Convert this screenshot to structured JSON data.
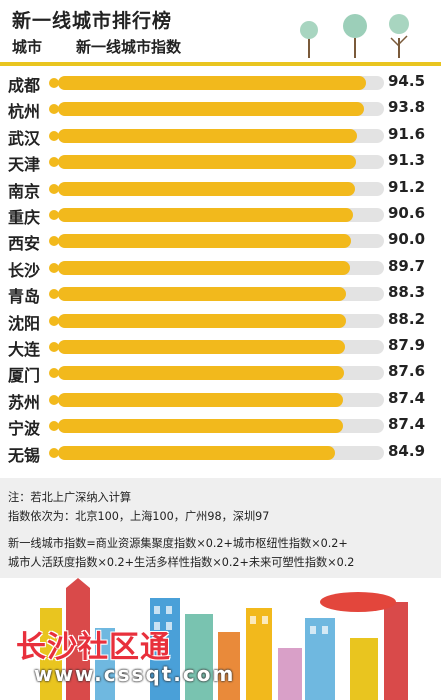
{
  "header": {
    "title": "新一线城市排行榜",
    "col_city": "城市",
    "col_index": "新一线城市指数"
  },
  "chart_data": {
    "type": "bar",
    "orientation": "horizontal",
    "title": "新一线城市排行榜",
    "xlabel": "新一线城市指数",
    "ylabel": "城市",
    "xlim": [
      0,
      100
    ],
    "categories": [
      "成都",
      "杭州",
      "武汉",
      "天津",
      "南京",
      "重庆",
      "西安",
      "长沙",
      "青岛",
      "沈阳",
      "大连",
      "厦门",
      "苏州",
      "宁波",
      "无锡"
    ],
    "values": [
      94.5,
      93.8,
      91.6,
      91.3,
      91.2,
      90.6,
      90.0,
      89.7,
      88.3,
      88.2,
      87.9,
      87.6,
      87.4,
      87.4,
      84.9
    ],
    "value_labels": [
      "94.5",
      "93.8",
      "91.6",
      "91.3",
      "91.2",
      "90.6",
      "90.0",
      "89.7",
      "88.3",
      "88.2",
      "87.9",
      "87.6",
      "87.4",
      "87.4",
      "84.9"
    ],
    "colors": {
      "bar": "#f2b91c",
      "track": "#e3e3e3"
    },
    "grid": false
  },
  "notes": {
    "line1": "注：若北上广深纳入计算",
    "line2": "指数依次为：北京100，上海100，广州98，深圳97",
    "line3": "新一线城市指数=商业资源集聚度指数×0.2+城市枢纽性指数×0.2+",
    "line4": "城市人活跃度指数×0.2+生活多样性指数×0.2+未来可塑性指数×0.2"
  },
  "watermark": {
    "text": "长沙社区通",
    "url": "www.cssqt.com"
  },
  "colors": {
    "accent": "#f2b91c",
    "divider": "#e9c51f",
    "notes_bg": "#efefef",
    "watermark": "#e8303c"
  }
}
